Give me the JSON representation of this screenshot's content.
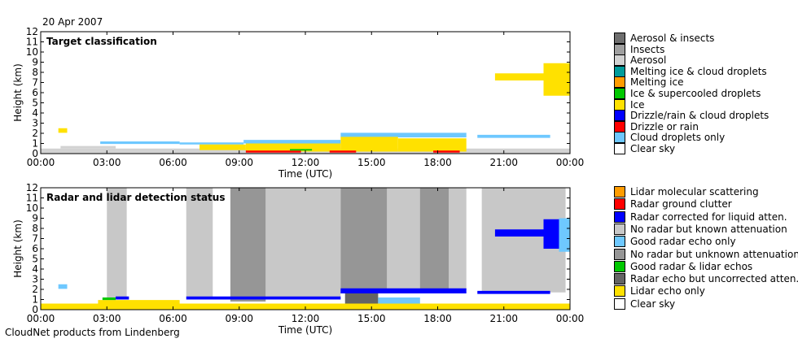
{
  "date_label": "20 Apr 2007",
  "footer": "CloudNet products from Lindenberg",
  "chart_data": [
    {
      "type": "heatmap",
      "title": "Target classification",
      "xlabel": "Time (UTC)",
      "ylabel": "Height (km)",
      "xlim": [
        0,
        24
      ],
      "ylim": [
        0,
        12
      ],
      "xticks": [
        "00:00",
        "03:00",
        "06:00",
        "09:00",
        "12:00",
        "15:00",
        "18:00",
        "21:00",
        "00:00"
      ],
      "yticks": [
        "0",
        "1",
        "2",
        "3",
        "4",
        "5",
        "6",
        "7",
        "8",
        "9",
        "10",
        "11",
        "12"
      ],
      "legend": [
        {
          "label": "Aerosol & insects",
          "color": "#6e6e6e"
        },
        {
          "label": "Insects",
          "color": "#a0a0a0"
        },
        {
          "label": "Aerosol",
          "color": "#d2d2d2"
        },
        {
          "label": "Melting ice & cloud droplets",
          "color": "#009c9c"
        },
        {
          "label": "Melting ice",
          "color": "#ff9c00"
        },
        {
          "label": "Ice & supercooled droplets",
          "color": "#00c800"
        },
        {
          "label": "Ice",
          "color": "#ffe100"
        },
        {
          "label": "Drizzle/rain & cloud droplets",
          "color": "#0000ff"
        },
        {
          "label": "Drizzle or rain",
          "color": "#ff0000"
        },
        {
          "label": "Cloud droplets only",
          "color": "#6ec8ff"
        },
        {
          "label": "Clear sky",
          "color": "#ffffff"
        }
      ],
      "regions": [
        {
          "class": "Aerosol",
          "t0": 0.0,
          "t1": 24.0,
          "h0": 0.0,
          "h1": 0.5
        },
        {
          "class": "Aerosol",
          "t0": 0.9,
          "t1": 3.4,
          "h0": 0.5,
          "h1": 0.75
        },
        {
          "class": "Ice",
          "t0": 0.8,
          "t1": 1.2,
          "h0": 2.05,
          "h1": 2.5
        },
        {
          "class": "Cloud droplets only",
          "t0": 2.7,
          "t1": 6.3,
          "h0": 0.95,
          "h1": 1.2
        },
        {
          "class": "Cloud droplets only",
          "t0": 6.3,
          "t1": 9.2,
          "h0": 0.9,
          "h1": 1.1
        },
        {
          "class": "Cloud droplets only",
          "t0": 9.2,
          "t1": 13.6,
          "h0": 1.0,
          "h1": 1.35
        },
        {
          "class": "Cloud droplets only",
          "t0": 13.6,
          "t1": 19.3,
          "h0": 1.6,
          "h1": 2.05
        },
        {
          "class": "Cloud droplets only",
          "t0": 19.8,
          "t1": 23.1,
          "h0": 1.55,
          "h1": 1.85
        },
        {
          "class": "Ice",
          "t0": 7.2,
          "t1": 9.3,
          "h0": 0.35,
          "h1": 0.9
        },
        {
          "class": "Ice",
          "t0": 9.3,
          "t1": 13.6,
          "h0": 0.2,
          "h1": 1.0
        },
        {
          "class": "Ice",
          "t0": 13.6,
          "t1": 16.2,
          "h0": 0.2,
          "h1": 1.65
        },
        {
          "class": "Ice",
          "t0": 16.2,
          "t1": 19.3,
          "h0": 0.2,
          "h1": 1.5
        },
        {
          "class": "Ice",
          "t0": 20.6,
          "t1": 22.8,
          "h0": 7.2,
          "h1": 7.9
        },
        {
          "class": "Ice",
          "t0": 22.8,
          "t1": 24.0,
          "h0": 5.7,
          "h1": 8.9
        },
        {
          "class": "Drizzle or rain",
          "t0": 9.3,
          "t1": 11.8,
          "h0": 0.1,
          "h1": 0.3
        },
        {
          "class": "Drizzle or rain",
          "t0": 13.1,
          "t1": 14.3,
          "h0": 0.1,
          "h1": 0.3
        },
        {
          "class": "Drizzle or rain",
          "t0": 17.8,
          "t1": 19.0,
          "h0": 0.1,
          "h1": 0.3
        },
        {
          "class": "Ice & supercooled droplets",
          "t0": 11.3,
          "t1": 12.3,
          "h0": 0.3,
          "h1": 0.45
        }
      ]
    },
    {
      "type": "heatmap",
      "title": "Radar and lidar detection status",
      "xlabel": "Time (UTC)",
      "ylabel": "Height (km)",
      "xlim": [
        0,
        24
      ],
      "ylim": [
        0,
        12
      ],
      "xticks": [
        "00:00",
        "03:00",
        "06:00",
        "09:00",
        "12:00",
        "15:00",
        "18:00",
        "21:00",
        "00:00"
      ],
      "yticks": [
        "0",
        "1",
        "2",
        "3",
        "4",
        "5",
        "6",
        "7",
        "8",
        "9",
        "10",
        "11",
        "12"
      ],
      "legend": [
        {
          "label": "Lidar molecular scattering",
          "color": "#ff9c00"
        },
        {
          "label": "Radar ground clutter",
          "color": "#ff0000"
        },
        {
          "label": "Radar corrected for liquid atten.",
          "color": "#0000ff"
        },
        {
          "label": "No radar but known attenuation",
          "color": "#c8c8c8"
        },
        {
          "label": "Good radar echo only",
          "color": "#6ec8ff"
        },
        {
          "label": "No radar but unknown attenuation",
          "color": "#969696"
        },
        {
          "label": "Good radar & lidar echos",
          "color": "#00c800"
        },
        {
          "label": "Radar echo but uncorrected atten.",
          "color": "#646464"
        },
        {
          "label": "Lidar echo only",
          "color": "#ffe100"
        },
        {
          "label": "Clear sky",
          "color": "#ffffff"
        }
      ],
      "regions": [
        {
          "class": "No radar but known attenuation",
          "t0": 3.0,
          "t1": 3.9,
          "h0": 1.2,
          "h1": 12.0
        },
        {
          "class": "No radar but known attenuation",
          "t0": 6.6,
          "t1": 7.8,
          "h0": 1.2,
          "h1": 12.0
        },
        {
          "class": "No radar but known attenuation",
          "t0": 9.1,
          "t1": 9.6,
          "h0": 1.0,
          "h1": 12.0
        },
        {
          "class": "No radar but known attenuation",
          "t0": 10.2,
          "t1": 13.6,
          "h0": 1.0,
          "h1": 12.0
        },
        {
          "class": "No radar but known attenuation",
          "t0": 15.7,
          "t1": 19.3,
          "h0": 2.0,
          "h1": 12.0
        },
        {
          "class": "No radar but known attenuation",
          "t0": 20.0,
          "t1": 23.8,
          "h0": 1.7,
          "h1": 12.0
        },
        {
          "class": "No radar but unknown attenuation",
          "t0": 8.6,
          "t1": 10.2,
          "h0": 0.8,
          "h1": 12.0
        },
        {
          "class": "No radar but unknown attenuation",
          "t0": 13.6,
          "t1": 15.7,
          "h0": 1.6,
          "h1": 12.0
        },
        {
          "class": "No radar but unknown attenuation",
          "t0": 17.2,
          "t1": 18.5,
          "h0": 1.8,
          "h1": 12.0
        },
        {
          "class": "Lidar echo only",
          "t0": 0.0,
          "t1": 24.0,
          "h0": 0.0,
          "h1": 0.6
        },
        {
          "class": "Lidar echo only",
          "t0": 2.6,
          "t1": 6.3,
          "h0": 0.6,
          "h1": 0.95
        },
        {
          "class": "Good radar & lidar echos",
          "t0": 2.8,
          "t1": 3.4,
          "h0": 0.95,
          "h1": 1.2
        },
        {
          "class": "Good radar echo only",
          "t0": 0.8,
          "t1": 1.2,
          "h0": 2.05,
          "h1": 2.5
        },
        {
          "class": "Radar corrected for liquid atten.",
          "t0": 3.4,
          "t1": 4.0,
          "h0": 1.0,
          "h1": 1.3
        },
        {
          "class": "Radar corrected for liquid atten.",
          "t0": 6.6,
          "t1": 13.6,
          "h0": 1.0,
          "h1": 1.3
        },
        {
          "class": "Radar corrected for liquid atten.",
          "t0": 13.6,
          "t1": 19.3,
          "h0": 1.6,
          "h1": 2.1
        },
        {
          "class": "Radar corrected for liquid atten.",
          "t0": 19.8,
          "t1": 23.1,
          "h0": 1.55,
          "h1": 1.85
        },
        {
          "class": "Radar corrected for liquid atten.",
          "t0": 20.6,
          "t1": 22.8,
          "h0": 7.2,
          "h1": 7.9
        },
        {
          "class": "Radar corrected for liquid atten.",
          "t0": 22.8,
          "t1": 24.0,
          "h0": 6.0,
          "h1": 8.9
        },
        {
          "class": "Good radar echo only",
          "t0": 23.5,
          "t1": 24.0,
          "h0": 5.7,
          "h1": 9.0
        },
        {
          "class": "Radar echo but uncorrected atten.",
          "t0": 13.8,
          "t1": 15.3,
          "h0": 0.6,
          "h1": 1.6
        },
        {
          "class": "Good radar echo only",
          "t0": 15.3,
          "t1": 17.2,
          "h0": 0.6,
          "h1": 1.2
        }
      ]
    }
  ]
}
